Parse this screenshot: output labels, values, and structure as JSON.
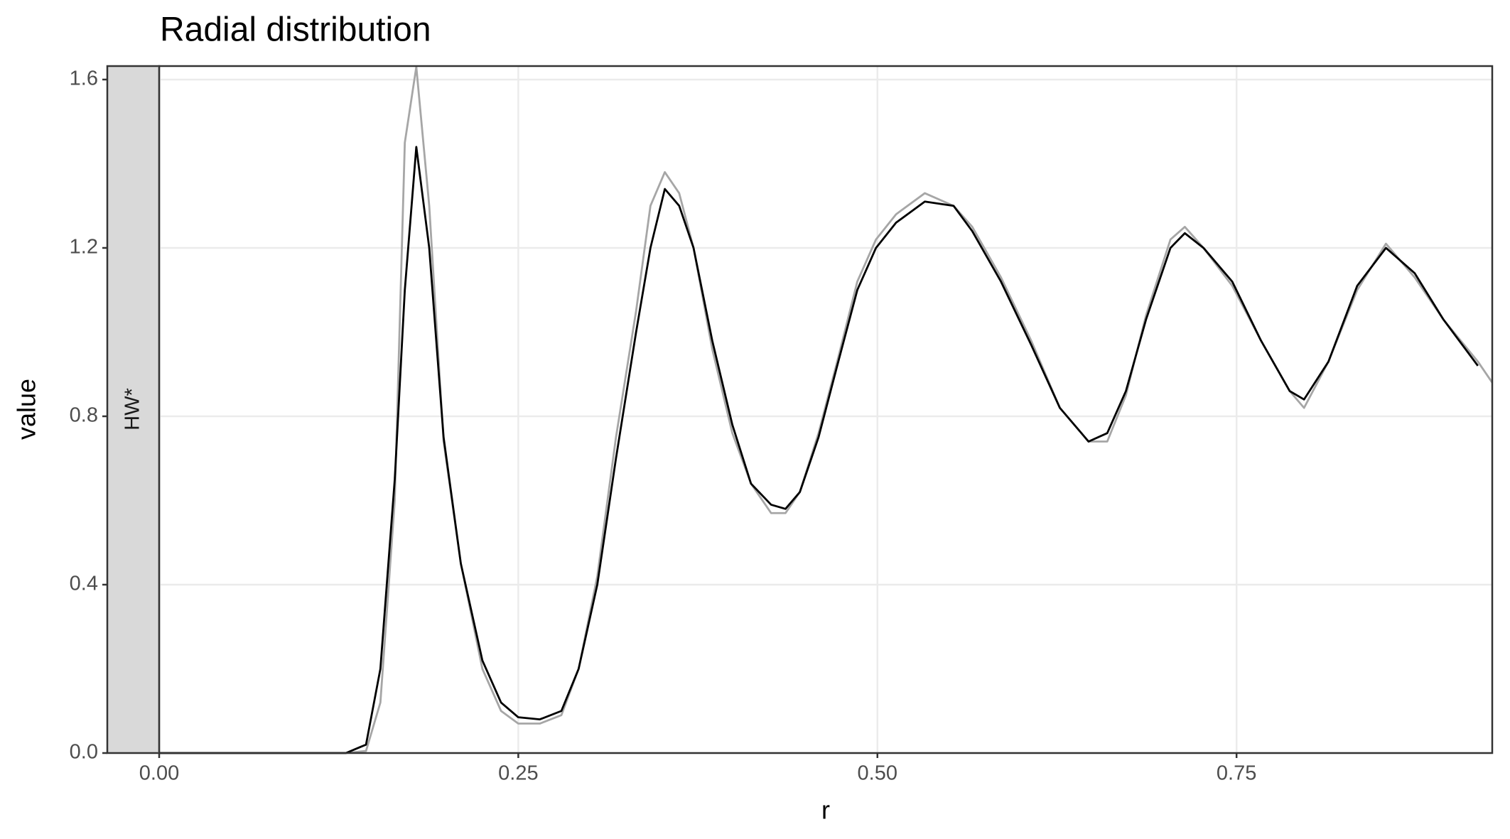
{
  "chart_data": {
    "type": "line",
    "title": "Radial distribution",
    "strip_label": "HW*",
    "x_label": "r",
    "y_label": "value",
    "x": [
      0,
      0.13,
      0.144,
      0.154,
      0.164,
      0.171,
      0.179,
      0.188,
      0.198,
      0.21,
      0.225,
      0.238,
      0.25,
      0.265,
      0.28,
      0.292,
      0.305,
      0.318,
      0.332,
      0.342,
      0.352,
      0.362,
      0.372,
      0.385,
      0.399,
      0.412,
      0.426,
      0.436,
      0.446,
      0.459,
      0.472,
      0.486,
      0.499,
      0.513,
      0.533,
      0.553,
      0.566,
      0.586,
      0.607,
      0.627,
      0.647,
      0.66,
      0.673,
      0.687,
      0.704,
      0.714,
      0.727,
      0.747,
      0.767,
      0.787,
      0.797,
      0.814,
      0.834,
      0.854,
      0.874,
      0.894,
      0.918,
      0.928
    ],
    "series": [
      {
        "color": "#a6a6a6",
        "values": [
          0,
          0,
          0.005,
          0.12,
          0.6,
          1.45,
          1.63,
          1.3,
          0.74,
          0.45,
          0.2,
          0.1,
          0.07,
          0.07,
          0.09,
          0.2,
          0.42,
          0.75,
          1.05,
          1.3,
          1.38,
          1.33,
          1.2,
          0.96,
          0.76,
          0.64,
          0.57,
          0.57,
          0.62,
          0.76,
          0.93,
          1.12,
          1.22,
          1.28,
          1.33,
          1.3,
          1.25,
          1.13,
          0.98,
          0.82,
          0.74,
          0.74,
          0.85,
          1.04,
          1.22,
          1.25,
          1.2,
          1.11,
          0.98,
          0.86,
          0.82,
          0.93,
          1.1,
          1.21,
          1.13,
          1.03,
          0.93,
          0.88
        ]
      },
      {
        "color": "#000000",
        "values": [
          0,
          0,
          0.02,
          0.2,
          0.65,
          1.1,
          1.44,
          1.2,
          0.75,
          0.45,
          0.22,
          0.12,
          0.085,
          0.08,
          0.1,
          0.2,
          0.4,
          0.7,
          1.0,
          1.2,
          1.34,
          1.3,
          1.2,
          0.98,
          0.78,
          0.64,
          0.59,
          0.58,
          0.62,
          0.75,
          0.92,
          1.1,
          1.2,
          1.26,
          1.31,
          1.3,
          1.24,
          1.12,
          0.97,
          0.82,
          0.74,
          0.76,
          0.86,
          1.03,
          1.2,
          1.235,
          1.2,
          1.12,
          0.98,
          0.86,
          0.84,
          0.93,
          1.11,
          1.2,
          1.14,
          1.03,
          0.92,
          null
        ]
      }
    ],
    "xlim": [
      0,
      0.928
    ],
    "ylim": [
      0,
      1.632
    ],
    "xticks": [
      {
        "value": 0,
        "label": "0.00"
      },
      {
        "value": 0.25,
        "label": "0.25"
      },
      {
        "value": 0.5,
        "label": "0.50"
      },
      {
        "value": 0.75,
        "label": "0.75"
      }
    ],
    "yticks": [
      {
        "value": 0,
        "label": "0.0"
      },
      {
        "value": 0.4,
        "label": "0.4"
      },
      {
        "value": 0.8,
        "label": "0.8"
      },
      {
        "value": 1.2,
        "label": "1.2"
      },
      {
        "value": 1.6,
        "label": "1.6"
      }
    ],
    "grid": true
  }
}
